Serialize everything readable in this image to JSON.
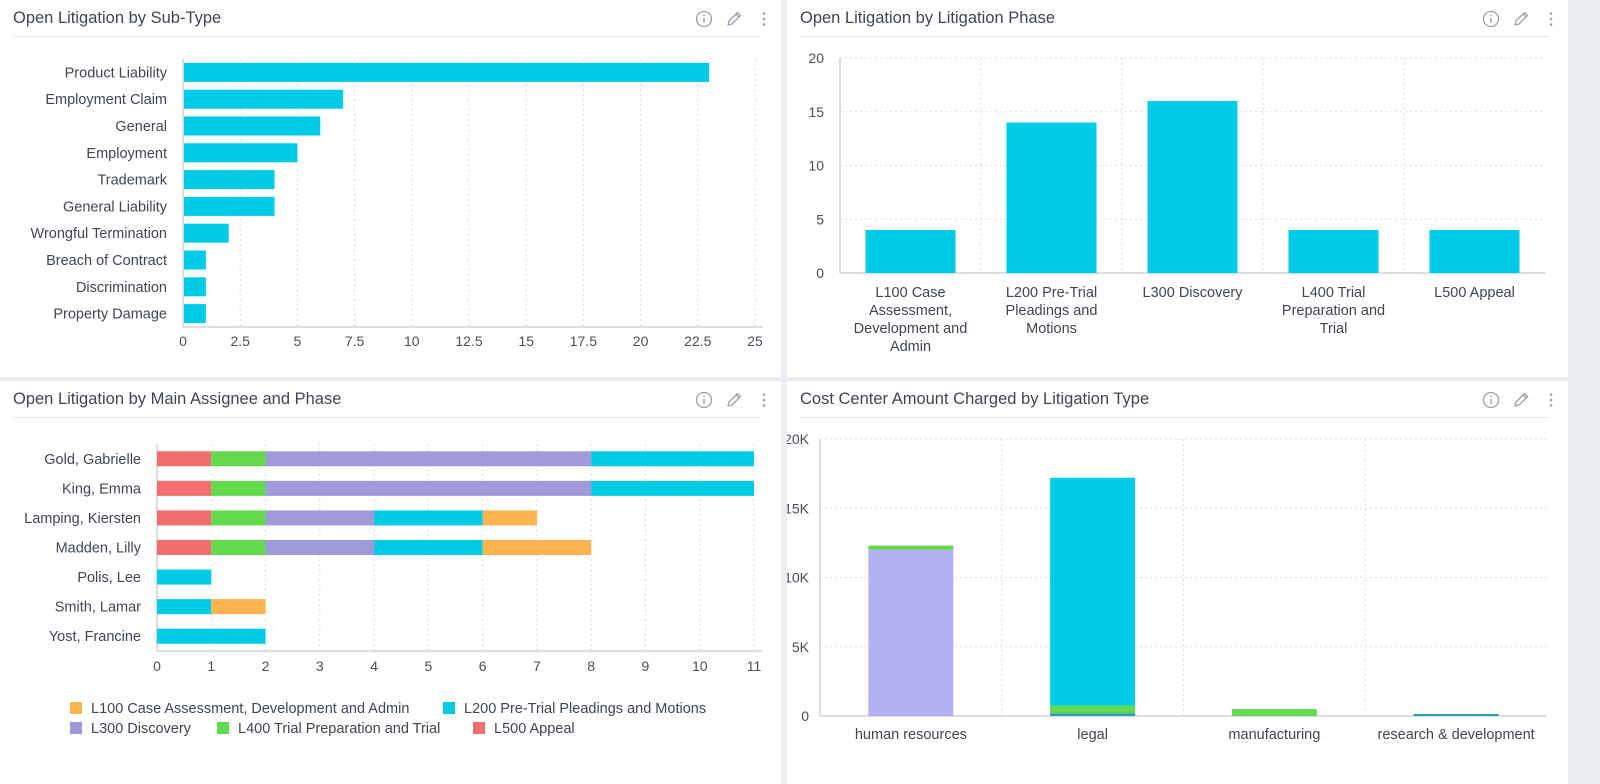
{
  "panels": {
    "subtype": {
      "title": "Open Litigation by Sub-Type"
    },
    "phase": {
      "title": "Open Litigation by Litigation Phase"
    },
    "assignee": {
      "title": "Open Litigation by Main Assignee and Phase"
    },
    "costcenter": {
      "title": "Cost Center Amount Charged by Litigation Type"
    }
  },
  "icons": [
    "info-icon",
    "pencil-icon",
    "more-vertical-icon"
  ],
  "colors": {
    "cyan": "#00cbe4",
    "orange": "#fbb44f",
    "purple": "#9e9bd8",
    "lavender": "#b3b1f4",
    "green": "#63d94e",
    "red": "#f26d6d",
    "teal": "#2a9fb0",
    "grid": "#d9dde2",
    "axis": "#b8bec6"
  },
  "chart_data": [
    {
      "id": "subtype",
      "type": "bar",
      "orientation": "horizontal",
      "title": "Open Litigation by Sub-Type",
      "categories": [
        "Product Liability",
        "Employment Claim",
        "General",
        "Employment",
        "Trademark",
        "General Liability",
        "Wrongful Termination",
        "Breach of Contract",
        "Discrimination",
        "Property Damage"
      ],
      "values": [
        23,
        7,
        6,
        5,
        4,
        4,
        2,
        1,
        1,
        1
      ],
      "xlim": [
        0,
        25
      ],
      "xticks": [
        0,
        2.5,
        5,
        7.5,
        10,
        12.5,
        15,
        17.5,
        20,
        22.5,
        25
      ],
      "grid": true
    },
    {
      "id": "phase",
      "type": "bar",
      "orientation": "vertical",
      "title": "Open Litigation by Litigation Phase",
      "categories": [
        "L100 Case Assessment, Development and Admin",
        "L200 Pre-Trial Pleadings and Motions",
        "L300 Discovery",
        "L400 Trial Preparation and Trial",
        "L500 Appeal"
      ],
      "category_lines": [
        [
          "L100 Case",
          "Assessment,",
          "Development and",
          "Admin"
        ],
        [
          "L200 Pre-Trial",
          "Pleadings and",
          "Motions"
        ],
        [
          "L300 Discovery"
        ],
        [
          "L400 Trial",
          "Preparation and",
          "Trial"
        ],
        [
          "L500 Appeal"
        ]
      ],
      "values": [
        4,
        14,
        16,
        4,
        4
      ],
      "ylim": [
        0,
        20
      ],
      "yticks": [
        0,
        5,
        10,
        15,
        20
      ],
      "grid": true
    },
    {
      "id": "assignee",
      "type": "bar",
      "orientation": "horizontal",
      "stacked": true,
      "title": "Open Litigation by Main Assignee and Phase",
      "categories": [
        "Gold, Gabrielle",
        "King, Emma",
        "Lamping, Kiersten",
        "Madden, Lilly",
        "Polis, Lee",
        "Smith, Lamar",
        "Yost, Francine"
      ],
      "stack_order": [
        "L500 Appeal",
        "L400 Trial Preparation and Trial",
        "L300 Discovery",
        "L200 Pre-Trial Pleadings and Motions",
        "L100 Case Assessment, Development and Admin"
      ],
      "series": [
        {
          "name": "L100 Case Assessment, Development and Admin",
          "color": "#fbb44f",
          "values": [
            0,
            0,
            1,
            2,
            0,
            1,
            0
          ]
        },
        {
          "name": "L200 Pre-Trial Pleadings and Motions",
          "color": "#00cbe4",
          "values": [
            3,
            3,
            2,
            2,
            1,
            1,
            2
          ]
        },
        {
          "name": "L300 Discovery",
          "color": "#9e9bd8",
          "values": [
            6,
            6,
            2,
            2,
            0,
            0,
            0
          ]
        },
        {
          "name": "L400 Trial Preparation and Trial",
          "color": "#63d94e",
          "values": [
            1,
            1,
            1,
            1,
            0,
            0,
            0
          ]
        },
        {
          "name": "L500 Appeal",
          "color": "#f26d6d",
          "values": [
            1,
            1,
            1,
            1,
            0,
            0,
            0
          ]
        }
      ],
      "xlim": [
        0,
        11
      ],
      "xticks": [
        0,
        1,
        2,
        3,
        4,
        5,
        6,
        7,
        8,
        9,
        10,
        11
      ],
      "legend_position": "bottom",
      "grid": true
    },
    {
      "id": "costcenter",
      "type": "bar",
      "orientation": "vertical",
      "stacked": true,
      "title": "Cost Center Amount Charged by Litigation Type",
      "categories": [
        "human resources",
        "legal",
        "manufacturing",
        "research & development"
      ],
      "series": [
        {
          "color": "#b3b1f4",
          "values": [
            12000,
            0,
            0,
            0
          ]
        },
        {
          "color": "#2a9fb0",
          "values": [
            0,
            200,
            0,
            150
          ]
        },
        {
          "color": "#63d94e",
          "values": [
            300,
            550,
            500,
            0
          ]
        },
        {
          "color": "#00cbe4",
          "values": [
            0,
            16450,
            0,
            0
          ]
        }
      ],
      "ylim": [
        0,
        20000
      ],
      "yticks": [
        0,
        5000,
        10000,
        15000,
        20000
      ],
      "ytick_labels": [
        "0",
        "5K",
        "10K",
        "15K",
        "20K"
      ],
      "grid": true
    }
  ]
}
